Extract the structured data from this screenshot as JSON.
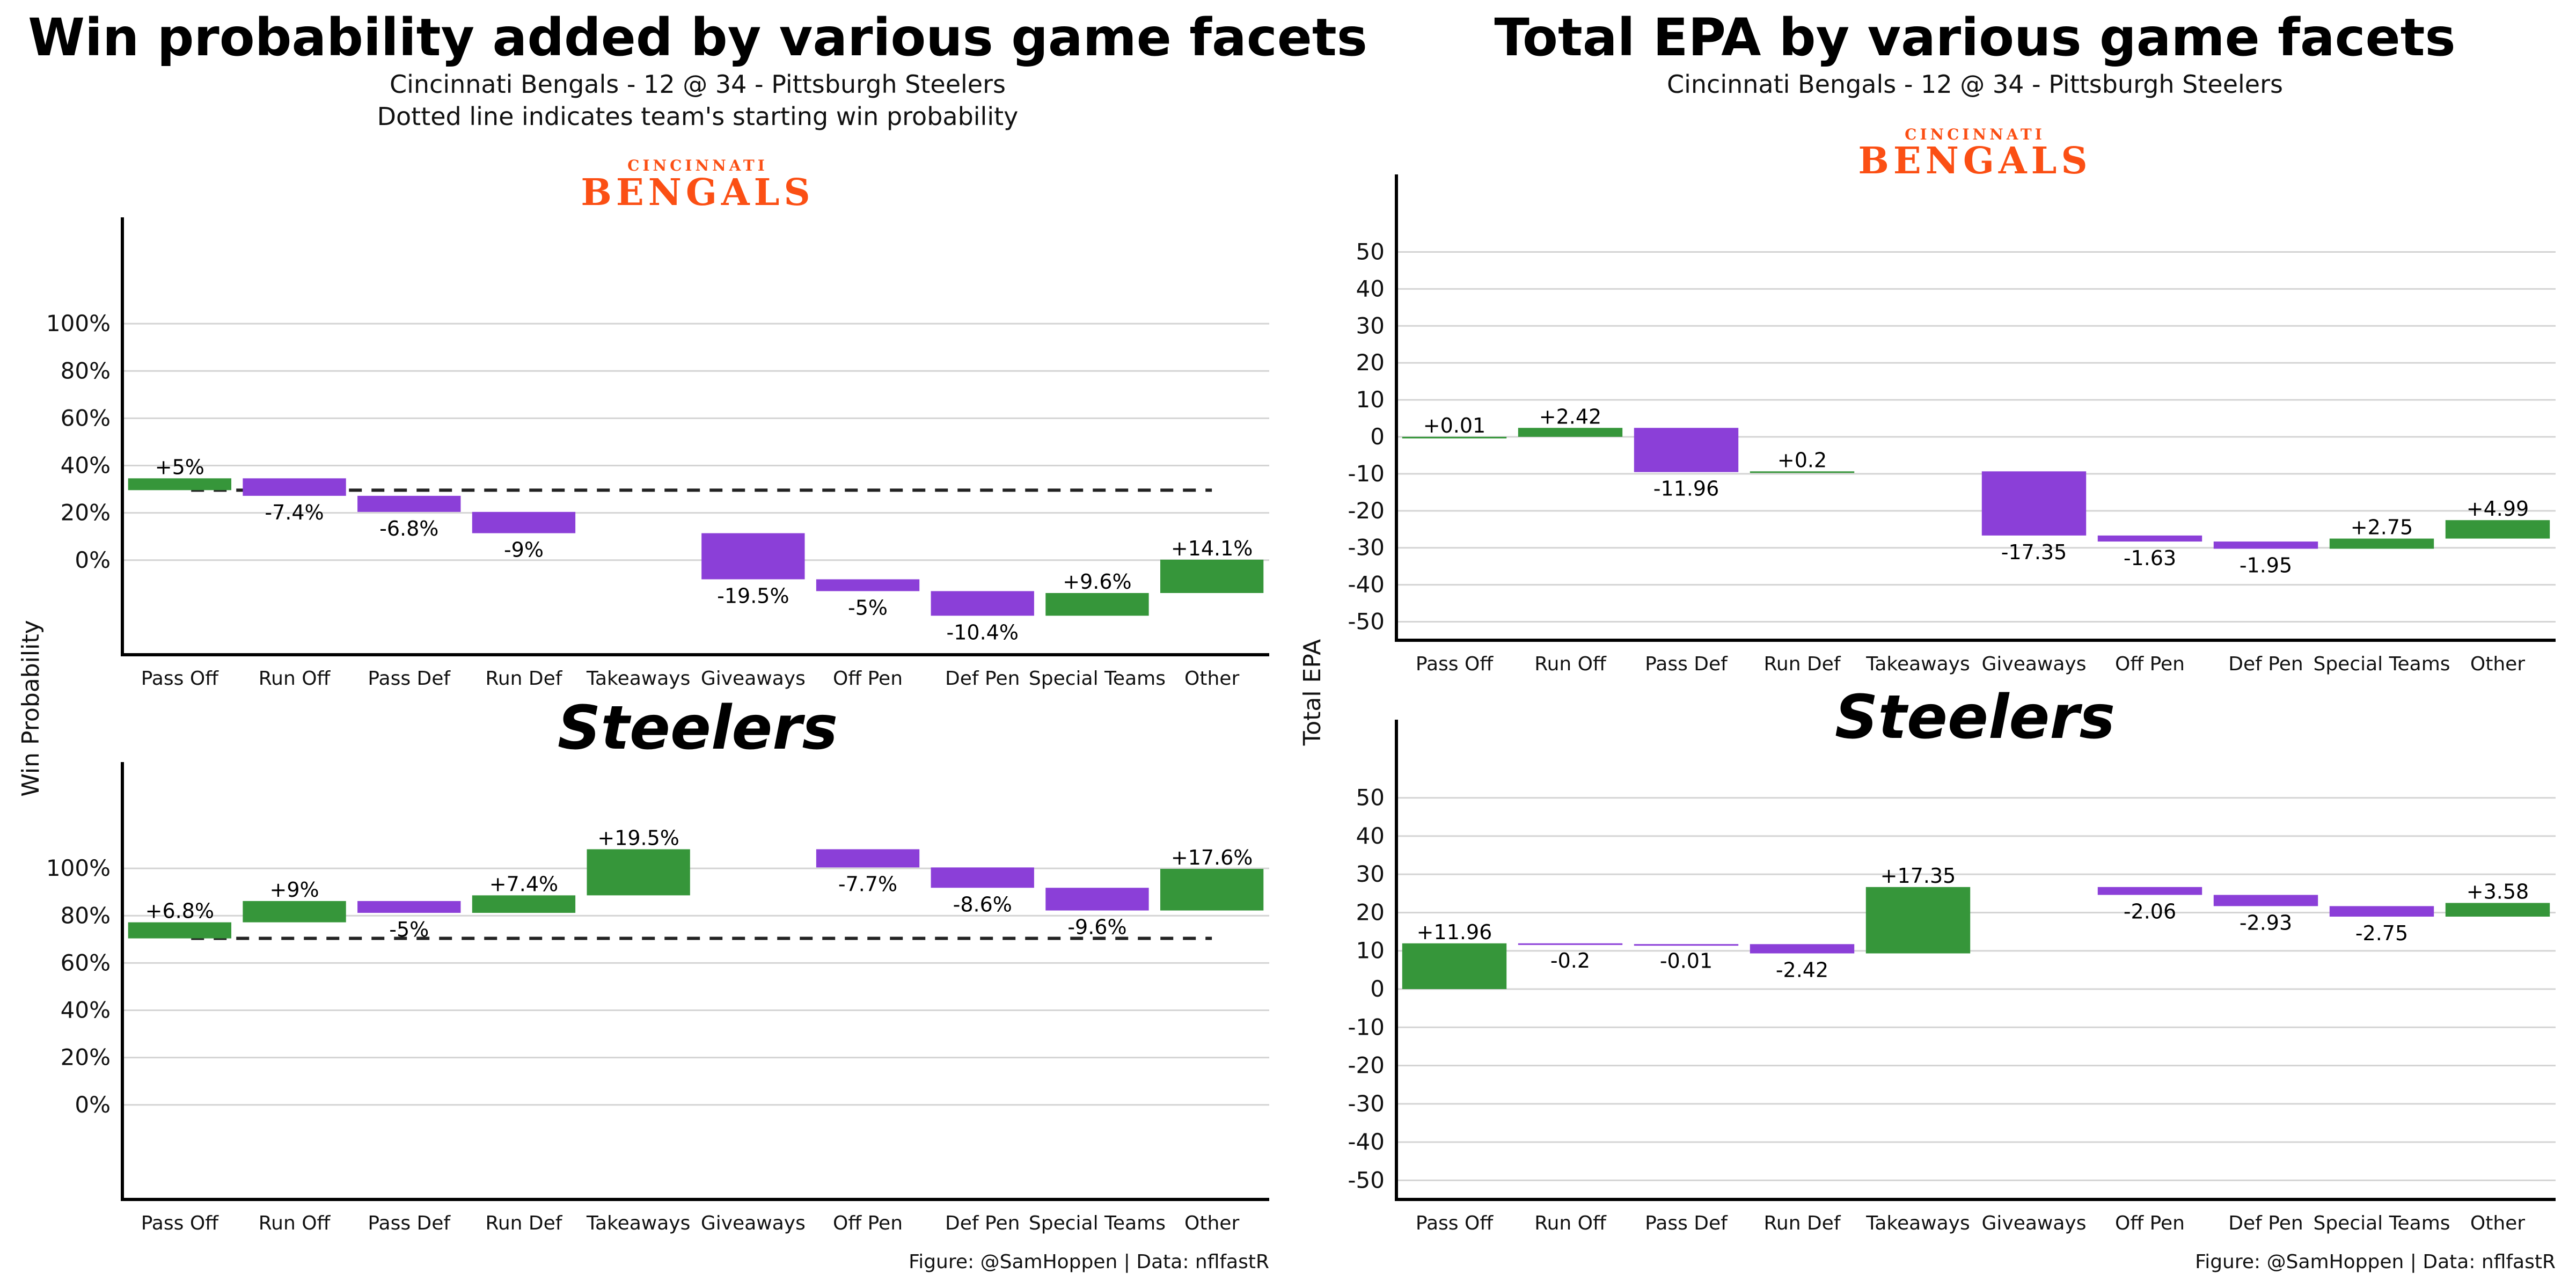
{
  "chart_data": [
    {
      "id": "wp_bengals",
      "type": "bar",
      "title": "Win probability added by various game facets",
      "subtitle": "Cincinnati Bengals - 12 @ 34 - Pittsburgh Steelers",
      "subtitle2": "Dotted line indicates team's starting win probability",
      "team": "BENGALS",
      "team_prefix": "CINCINNATI",
      "ylabel": "Win Probability",
      "ylim": [
        -40,
        120
      ],
      "yticks": [
        0,
        20,
        40,
        60,
        80,
        100
      ],
      "ytick_labels": [
        "0%",
        "20%",
        "40%",
        "60%",
        "80%",
        "100%"
      ],
      "reference_line": 29.6,
      "categories": [
        "Pass Off",
        "Run Off",
        "Pass Def",
        "Run Def",
        "Takeaways",
        "Giveaways",
        "Off Pen",
        "Def Pen",
        "Special Teams",
        "Other"
      ],
      "bars": [
        {
          "start": 29.6,
          "end": 34.6,
          "color": "#36963a",
          "label": "+5%"
        },
        {
          "start": 34.6,
          "end": 27.2,
          "color": "#8b3fd8",
          "label": "-7.4%"
        },
        {
          "start": 27.2,
          "end": 20.4,
          "color": "#8b3fd8",
          "label": "-6.8%"
        },
        {
          "start": 20.4,
          "end": 11.4,
          "color": "#8b3fd8",
          "label": "-9%"
        },
        null,
        {
          "start": 11.4,
          "end": -8.1,
          "color": "#8b3fd8",
          "label": "-19.5%"
        },
        {
          "start": -8.1,
          "end": -13.1,
          "color": "#8b3fd8",
          "label": "-5%"
        },
        {
          "start": -13.1,
          "end": -23.5,
          "color": "#8b3fd8",
          "label": "-10.4%"
        },
        {
          "start": -23.5,
          "end": -13.9,
          "color": "#36963a",
          "label": "+9.6%"
        },
        {
          "start": -13.9,
          "end": 0.2,
          "color": "#36963a",
          "label": "+14.1%"
        }
      ]
    },
    {
      "id": "wp_steelers",
      "type": "bar",
      "team": "Steelers",
      "ylim": [
        -40,
        120
      ],
      "yticks": [
        0,
        20,
        40,
        60,
        80,
        100
      ],
      "ytick_labels": [
        "0%",
        "20%",
        "40%",
        "60%",
        "80%",
        "100%"
      ],
      "reference_line": 70.4,
      "categories": [
        "Pass Off",
        "Run Off",
        "Pass Def",
        "Run Def",
        "Takeaways",
        "Giveaways",
        "Off Pen",
        "Def Pen",
        "Special Teams",
        "Other"
      ],
      "bars": [
        {
          "start": 70.4,
          "end": 77.2,
          "color": "#36963a",
          "label": "+6.8%"
        },
        {
          "start": 77.2,
          "end": 86.2,
          "color": "#36963a",
          "label": "+9%"
        },
        {
          "start": 86.2,
          "end": 81.2,
          "color": "#8b3fd8",
          "label": "-5%"
        },
        {
          "start": 81.2,
          "end": 88.6,
          "color": "#36963a",
          "label": "+7.4%"
        },
        {
          "start": 88.6,
          "end": 108.1,
          "color": "#36963a",
          "label": "+19.5%"
        },
        null,
        {
          "start": 108.1,
          "end": 100.4,
          "color": "#8b3fd8",
          "label": "-7.7%"
        },
        {
          "start": 100.4,
          "end": 91.8,
          "color": "#8b3fd8",
          "label": "-8.6%"
        },
        {
          "start": 91.8,
          "end": 82.2,
          "color": "#8b3fd8",
          "label": "-9.6%"
        },
        {
          "start": 82.2,
          "end": 99.8,
          "color": "#36963a",
          "label": "+17.6%"
        }
      ],
      "caption": "Figure: @SamHoppen | Data: nflfastR"
    },
    {
      "id": "epa_bengals",
      "type": "bar",
      "title": "Total EPA by various game facets",
      "subtitle": "Cincinnati Bengals - 12 @ 34 - Pittsburgh Steelers",
      "team": "BENGALS",
      "team_prefix": "CINCINNATI",
      "ylabel": "Total EPA",
      "ylim": [
        -55,
        55
      ],
      "yticks": [
        -50,
        -40,
        -30,
        -20,
        -10,
        0,
        10,
        20,
        30,
        40,
        50
      ],
      "ytick_labels": [
        "-50",
        "-40",
        "-30",
        "-20",
        "-10",
        "0",
        "10",
        "20",
        "30",
        "40",
        "50"
      ],
      "categories": [
        "Pass Off",
        "Run Off",
        "Pass Def",
        "Run Def",
        "Takeaways",
        "Giveaways",
        "Off Pen",
        "Def Pen",
        "Special Teams",
        "Other"
      ],
      "bars": [
        {
          "start": 0,
          "end": 0.01,
          "color": "#36963a",
          "label": "+0.01"
        },
        {
          "start": 0.01,
          "end": 2.43,
          "color": "#36963a",
          "label": "+2.42"
        },
        {
          "start": 2.43,
          "end": -9.53,
          "color": "#8b3fd8",
          "label": "-11.96"
        },
        {
          "start": -9.53,
          "end": -9.33,
          "color": "#36963a",
          "label": "+0.2"
        },
        null,
        {
          "start": -9.33,
          "end": -26.68,
          "color": "#8b3fd8",
          "label": "-17.35"
        },
        {
          "start": -26.68,
          "end": -28.31,
          "color": "#8b3fd8",
          "label": "-1.63"
        },
        {
          "start": -28.31,
          "end": -30.26,
          "color": "#8b3fd8",
          "label": "-1.95"
        },
        {
          "start": -30.26,
          "end": -27.51,
          "color": "#36963a",
          "label": "+2.75"
        },
        {
          "start": -27.51,
          "end": -22.52,
          "color": "#36963a",
          "label": "+4.99"
        }
      ]
    },
    {
      "id": "epa_steelers",
      "type": "bar",
      "team": "Steelers",
      "ylim": [
        -55,
        55
      ],
      "yticks": [
        -50,
        -40,
        -30,
        -20,
        -10,
        0,
        10,
        20,
        30,
        40,
        50
      ],
      "ytick_labels": [
        "-50",
        "-40",
        "-30",
        "-20",
        "-10",
        "0",
        "10",
        "20",
        "30",
        "40",
        "50"
      ],
      "categories": [
        "Pass Off",
        "Run Off",
        "Pass Def",
        "Run Def",
        "Takeaways",
        "Giveaways",
        "Off Pen",
        "Def Pen",
        "Special Teams",
        "Other"
      ],
      "bars": [
        {
          "start": 0,
          "end": 11.96,
          "color": "#36963a",
          "label": "+11.96"
        },
        {
          "start": 11.96,
          "end": 11.76,
          "color": "#8b3fd8",
          "label": "-0.2"
        },
        {
          "start": 11.76,
          "end": 11.75,
          "color": "#8b3fd8",
          "label": "-0.01"
        },
        {
          "start": 11.75,
          "end": 9.33,
          "color": "#8b3fd8",
          "label": "-2.42"
        },
        {
          "start": 9.33,
          "end": 26.68,
          "color": "#36963a",
          "label": "+17.35"
        },
        null,
        {
          "start": 26.68,
          "end": 24.62,
          "color": "#8b3fd8",
          "label": "-2.06"
        },
        {
          "start": 24.62,
          "end": 21.69,
          "color": "#8b3fd8",
          "label": "-2.93"
        },
        {
          "start": 21.69,
          "end": 18.94,
          "color": "#8b3fd8",
          "label": "-2.75"
        },
        {
          "start": 18.94,
          "end": 22.52,
          "color": "#36963a",
          "label": "+3.58"
        }
      ],
      "caption": "Figure: @SamHoppen | Data: nflfastR"
    }
  ]
}
